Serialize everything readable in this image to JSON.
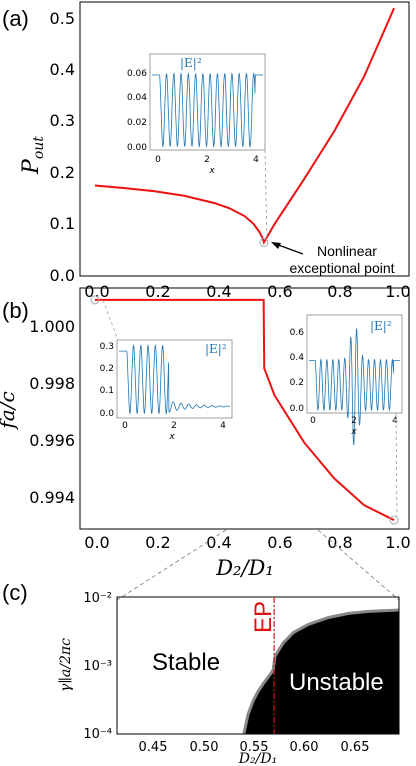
{
  "chart_data": [
    {
      "id": "a",
      "type": "line",
      "panel_label": "(a)",
      "xlabel": "",
      "ylabel": "P_out",
      "xlim": [
        -0.05,
        1.05
      ],
      "ylim": [
        0.0,
        0.53
      ],
      "xticks": [
        "0.0",
        "0.2",
        "0.4",
        "0.6",
        "0.8",
        "1.0"
      ],
      "yticks": [
        "0.0",
        "0.1",
        "0.2",
        "0.3",
        "0.4",
        "0.5"
      ],
      "series": [
        {
          "color": "#ee1111",
          "x": [
            0.0,
            0.1,
            0.2,
            0.3,
            0.4,
            0.45,
            0.5,
            0.53,
            0.55,
            0.56,
            0.565,
            0.6,
            0.7,
            0.8,
            0.9,
            1.0
          ],
          "y": [
            0.175,
            0.17,
            0.164,
            0.155,
            0.141,
            0.131,
            0.116,
            0.101,
            0.085,
            0.074,
            0.065,
            0.1,
            0.188,
            0.28,
            0.386,
            0.518
          ]
        }
      ],
      "marker": {
        "x": 0.565,
        "y": 0.065
      },
      "annotation": {
        "line1": "Nonlinear",
        "line2": "exceptional point"
      },
      "inset": {
        "label": "|E|²",
        "xlabel": "x",
        "xticks": [
          "0",
          "2",
          "4"
        ],
        "yticks": [
          "0.00",
          "0.02",
          "0.04",
          "0.06"
        ]
      }
    },
    {
      "id": "b",
      "type": "line",
      "panel_label": "(b)",
      "xlabel": "D₂/D₁",
      "ylabel": "fa/c",
      "xlim": [
        -0.05,
        1.05
      ],
      "ylim": [
        0.9936,
        1.0017
      ],
      "xticks": [
        "0.0",
        "0.2",
        "0.4",
        "0.6",
        "0.8",
        "1.0"
      ],
      "yticks": [
        "0.994",
        "0.996",
        "0.998",
        "1.000"
      ],
      "series": [
        {
          "color": "#ee1111",
          "x": [
            0.0,
            0.2,
            0.4,
            0.55,
            0.564,
            0.566,
            0.6,
            0.7,
            0.8,
            0.9,
            1.0
          ],
          "y": [
            1.0013,
            1.0013,
            1.0013,
            1.0013,
            1.0013,
            0.999,
            0.9981,
            0.9965,
            0.9953,
            0.9944,
            0.9939
          ]
        }
      ],
      "markers": [
        {
          "x": 0.0,
          "y": 1.0013
        },
        {
          "x": 1.0,
          "y": 0.9939
        }
      ],
      "insets": [
        {
          "label": "|E|²",
          "xlabel": "x",
          "xticks": [
            "0",
            "2",
            "4"
          ],
          "yticks": [
            "0.0",
            "0.1",
            "0.2",
            "0.3"
          ]
        },
        {
          "label": "|E|²",
          "xlabel": "x",
          "xticks": [
            "0",
            "2",
            "4"
          ],
          "yticks": [
            "0.0",
            "0.2",
            "0.4",
            "0.6"
          ]
        }
      ]
    },
    {
      "id": "c",
      "type": "area",
      "panel_label": "(c)",
      "xlabel": "D₂/D₁",
      "ylabel": "γ∥a/2πc",
      "xlim": [
        0.41,
        0.69
      ],
      "ylim_log10": [
        -4,
        -2
      ],
      "log_y": true,
      "xticks": [
        "0.45",
        "0.50",
        "0.55",
        "0.60",
        "0.65"
      ],
      "yticks": [
        "10⁻⁴",
        "10⁻³",
        "10⁻²"
      ],
      "boundary": {
        "x": [
          0.536,
          0.54,
          0.545,
          0.55,
          0.555,
          0.56,
          0.565,
          0.567,
          0.575,
          0.585,
          0.6,
          0.62,
          0.64,
          0.66,
          0.69
        ],
        "log10_y": [
          -4.0,
          -3.72,
          -3.52,
          -3.38,
          -3.27,
          -3.17,
          -3.07,
          -2.86,
          -2.67,
          -2.52,
          -2.4,
          -2.3,
          -2.24,
          -2.21,
          -2.19
        ]
      },
      "ep_line": {
        "x": 0.566,
        "label": "EP",
        "color": "#dd1111"
      },
      "region_labels": {
        "stable": "Stable",
        "unstable": "Unstable"
      }
    }
  ]
}
